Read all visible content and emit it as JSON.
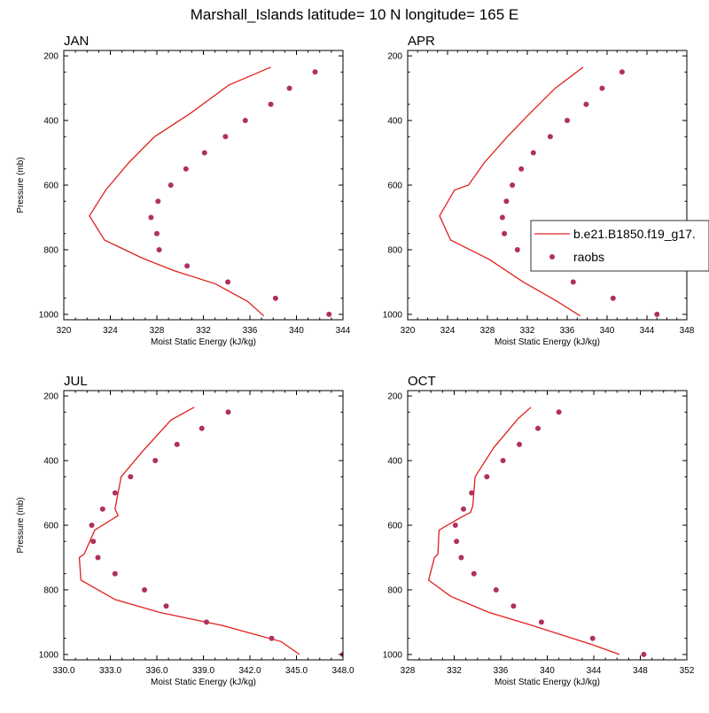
{
  "title": "Marshall_Islands  latitude= 10 N longitude= 165 E",
  "colors": {
    "model": "#e0201b",
    "obs": "#b03060",
    "frame": "#000000"
  },
  "legend": {
    "entries": [
      "b.e21.B1850.f19_g17.",
      "raobs"
    ]
  },
  "chart_data": [
    {
      "type": "line",
      "panel": "JAN",
      "xlabel": "Moist Static Energy (kJ/kg)",
      "ylabel": "Pressure (mb)",
      "xlim": [
        320,
        344
      ],
      "ylim": [
        1000,
        200
      ],
      "xticks": [
        "320",
        "324",
        "328",
        "332",
        "336",
        "340",
        "344"
      ],
      "yticks": [
        "200",
        "400",
        "600",
        "800",
        "1000"
      ],
      "series": [
        {
          "kind": "line",
          "x": [
            337.8,
            334.2,
            330.8,
            327.8,
            325.6,
            323.6,
            322.2,
            323.5,
            326.7,
            329.5,
            333.0,
            335.8,
            337.2
          ],
          "y": [
            235,
            290,
            380,
            450,
            530,
            615,
            695,
            770,
            825,
            865,
            905,
            960,
            1005
          ]
        },
        {
          "kind": "scatter",
          "x": [
            341.6,
            339.4,
            337.8,
            335.6,
            333.9,
            332.1,
            330.5,
            329.2,
            328.1,
            327.5,
            328.0,
            328.2,
            330.6,
            334.1,
            338.2,
            342.8
          ],
          "y": [
            250,
            300,
            350,
            400,
            450,
            500,
            550,
            600,
            650,
            700,
            750,
            800,
            850,
            900,
            950,
            1000
          ]
        }
      ]
    },
    {
      "type": "line",
      "panel": "APR",
      "xlabel": "Moist Static Energy (kJ/kg)",
      "ylabel": "",
      "xlim": [
        320,
        348
      ],
      "ylim": [
        1000,
        200
      ],
      "xticks": [
        "320",
        "324",
        "328",
        "332",
        "336",
        "340",
        "344",
        "348"
      ],
      "yticks": [
        "200",
        "400",
        "600",
        "800",
        "1000"
      ],
      "series": [
        {
          "kind": "line",
          "x": [
            337.6,
            334.8,
            332.2,
            330.0,
            327.7,
            326.1,
            324.7,
            323.2,
            324.3,
            328.2,
            331.6,
            335.0,
            337.3
          ],
          "y": [
            235,
            300,
            380,
            450,
            530,
            600,
            615,
            695,
            770,
            830,
            900,
            960,
            1005
          ]
        },
        {
          "kind": "scatter",
          "x": [
            341.5,
            339.5,
            337.9,
            336.0,
            334.3,
            332.6,
            331.4,
            330.5,
            329.9,
            329.5,
            329.7,
            331.0,
            333.3,
            336.6,
            340.6,
            345.0
          ],
          "y": [
            250,
            300,
            350,
            400,
            450,
            500,
            550,
            600,
            650,
            700,
            750,
            800,
            850,
            900,
            950,
            1000
          ]
        }
      ]
    },
    {
      "type": "line",
      "panel": "JUL",
      "xlabel": "Moist Static Energy (kJ/kg)",
      "ylabel": "Pressure (mb)",
      "xlim": [
        330,
        348
      ],
      "ylim": [
        1000,
        200
      ],
      "xticks": [
        "330.0",
        "333.0",
        "336.0",
        "339.0",
        "342.0",
        "345.0",
        "348.0"
      ],
      "yticks": [
        "200",
        "400",
        "600",
        "800",
        "1000"
      ],
      "series": [
        {
          "kind": "line",
          "x": [
            338.4,
            336.9,
            335.1,
            333.7,
            333.3,
            333.5,
            332.0,
            331.3,
            331.0,
            331.1,
            333.3,
            336.2,
            340.2,
            344.0,
            345.2
          ],
          "y": [
            235,
            275,
            370,
            450,
            550,
            570,
            615,
            690,
            700,
            770,
            830,
            870,
            910,
            960,
            1000
          ]
        },
        {
          "kind": "scatter",
          "x": [
            340.6,
            338.9,
            337.3,
            335.9,
            334.3,
            333.3,
            332.5,
            331.8,
            331.9,
            332.2,
            333.3,
            335.2,
            336.6,
            339.2,
            343.4,
            348.0
          ],
          "y": [
            250,
            300,
            350,
            400,
            450,
            500,
            550,
            600,
            650,
            700,
            750,
            800,
            850,
            900,
            950,
            1000
          ]
        }
      ]
    },
    {
      "type": "line",
      "panel": "OCT",
      "xlabel": "Moist Static Energy (kJ/kg)",
      "ylabel": "",
      "xlim": [
        328,
        352
      ],
      "ylim": [
        1000,
        200
      ],
      "xticks": [
        "328",
        "332",
        "336",
        "340",
        "344",
        "348",
        "352"
      ],
      "yticks": [
        "200",
        "400",
        "600",
        "800",
        "1000"
      ],
      "series": [
        {
          "kind": "line",
          "x": [
            338.6,
            337.5,
            335.4,
            333.8,
            333.6,
            333.4,
            332.6,
            330.7,
            330.6,
            330.3,
            329.8,
            331.7,
            335.0,
            338.7,
            343.9,
            346.2
          ],
          "y": [
            235,
            270,
            360,
            450,
            540,
            560,
            575,
            615,
            690,
            700,
            770,
            820,
            870,
            910,
            970,
            1000
          ]
        },
        {
          "kind": "scatter",
          "x": [
            341.0,
            339.2,
            337.6,
            336.2,
            334.8,
            333.5,
            332.8,
            332.1,
            332.2,
            332.6,
            333.7,
            335.6,
            337.1,
            339.5,
            343.9,
            348.3
          ],
          "y": [
            250,
            300,
            350,
            400,
            450,
            500,
            550,
            600,
            650,
            700,
            750,
            800,
            850,
            900,
            950,
            1000
          ]
        }
      ]
    }
  ]
}
